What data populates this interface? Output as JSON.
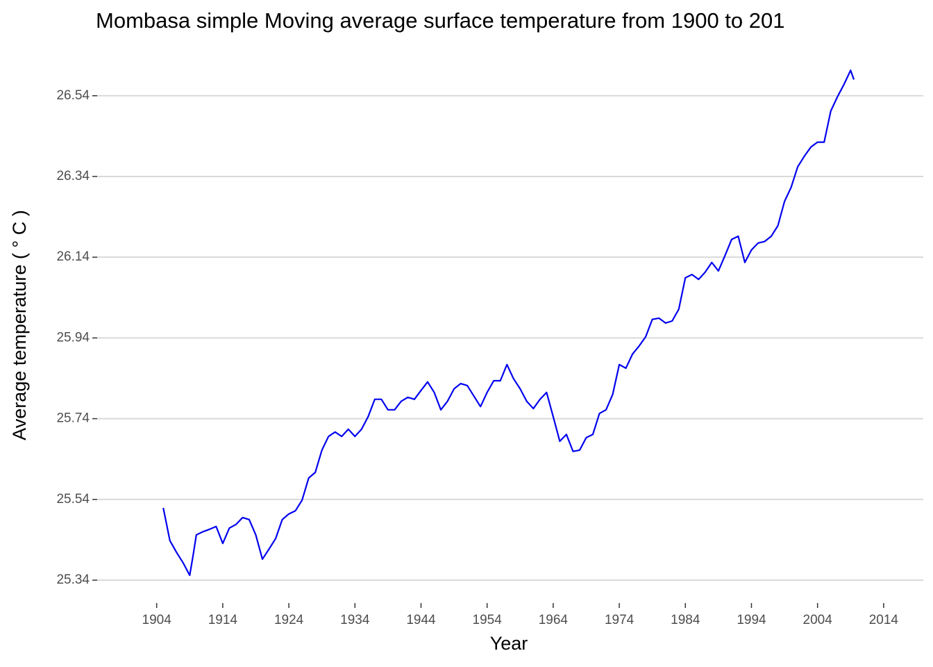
{
  "chart_data": {
    "type": "line",
    "title": "Mombasa simple Moving average surface temperature from 1900 to 201",
    "xlabel": "Year",
    "ylabel": "Average temperature ( ° C )",
    "color": "#0000ee",
    "grid": true,
    "xlim": [
      1895,
      2020
    ],
    "ylim": [
      25.297,
      26.605
    ],
    "xticks": [
      1904,
      1914,
      1924,
      1934,
      1944,
      1954,
      1964,
      1974,
      1984,
      1994,
      2004,
      2014
    ],
    "yticks": [
      25.34,
      25.54,
      25.74,
      25.94,
      26.14,
      26.34,
      26.54
    ],
    "x": [
      1905,
      1906,
      1907,
      1908,
      1909,
      1909.5,
      1910,
      1911,
      1912,
      1913,
      1914,
      1915,
      1916,
      1917,
      1918,
      1919,
      1920,
      1921,
      1922,
      1923,
      1924,
      1925,
      1926,
      1927,
      1928,
      1929,
      1930,
      1931,
      1932,
      1933,
      1934,
      1935,
      1936,
      1937,
      1938,
      1939,
      1940,
      1941,
      1942,
      1943,
      1944,
      1945,
      1946,
      1947,
      1948,
      1949,
      1950,
      1951,
      1952,
      1953,
      1954,
      1955,
      1956,
      1957,
      1958,
      1959,
      1960,
      1961,
      1962,
      1963,
      1964,
      1965,
      1966,
      1967,
      1968,
      1969,
      1970,
      1971,
      1972,
      1973,
      1974,
      1975,
      1976,
      1977,
      1978,
      1979,
      1980,
      1981,
      1982,
      1983,
      1984,
      1985,
      1986,
      1987,
      1988,
      1989,
      1990,
      1991,
      1992,
      1993,
      1994,
      1995,
      1996,
      1997,
      1998,
      1999,
      2000,
      2001,
      2002,
      2003,
      2004,
      2005,
      2006,
      2007,
      2008,
      2009,
      2009.5
    ],
    "values": [
      25.519,
      25.438,
      25.409,
      25.383,
      25.352,
      25.4,
      25.452,
      25.46,
      25.466,
      25.473,
      25.431,
      25.469,
      25.478,
      25.495,
      25.49,
      25.452,
      25.392,
      25.417,
      25.443,
      25.49,
      25.504,
      25.512,
      25.538,
      25.593,
      25.607,
      25.662,
      25.696,
      25.707,
      25.696,
      25.714,
      25.696,
      25.714,
      25.745,
      25.788,
      25.788,
      25.762,
      25.762,
      25.783,
      25.793,
      25.788,
      25.81,
      25.831,
      25.805,
      25.762,
      25.783,
      25.814,
      25.827,
      25.822,
      25.796,
      25.77,
      25.805,
      25.834,
      25.834,
      25.874,
      25.839,
      25.814,
      25.783,
      25.765,
      25.788,
      25.805,
      25.745,
      25.684,
      25.701,
      25.659,
      25.662,
      25.693,
      25.701,
      25.753,
      25.762,
      25.8,
      25.874,
      25.865,
      25.9,
      25.92,
      25.943,
      25.986,
      25.989,
      25.977,
      25.982,
      26.011,
      26.089,
      26.097,
      26.085,
      26.103,
      26.127,
      26.106,
      26.144,
      26.184,
      26.192,
      26.127,
      26.158,
      26.175,
      26.179,
      26.192,
      26.218,
      26.278,
      26.313,
      26.364,
      26.39,
      26.413,
      26.425,
      26.425,
      26.502,
      26.537,
      26.568,
      26.603,
      26.58
    ]
  }
}
